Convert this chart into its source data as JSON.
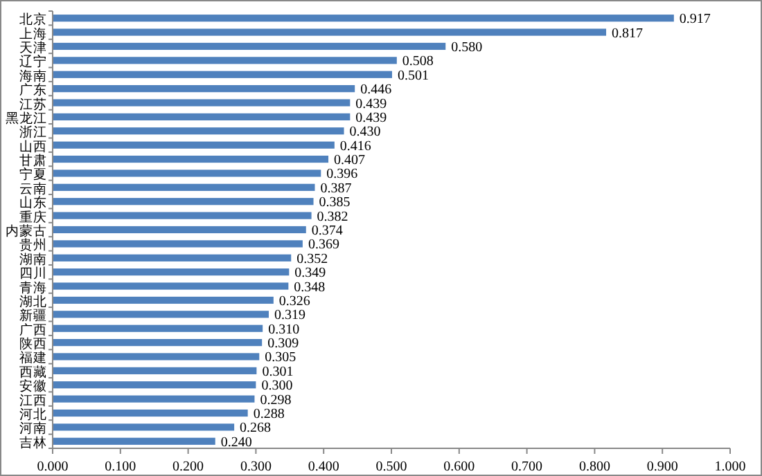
{
  "chart_data": {
    "type": "bar",
    "orientation": "horizontal",
    "categories": [
      "北京",
      "上海",
      "天津",
      "辽宁",
      "海南",
      "广东",
      "江苏",
      "黑龙江",
      "浙江",
      "山西",
      "甘肃",
      "宁夏",
      "云南",
      "山东",
      "重庆",
      "内蒙古",
      "贵州",
      "湖南",
      "四川",
      "青海",
      "湖北",
      "新疆",
      "广西",
      "陕西",
      "福建",
      "西藏",
      "安徽",
      "江西",
      "河北",
      "河南",
      "吉林"
    ],
    "values": [
      0.917,
      0.817,
      0.58,
      0.508,
      0.501,
      0.446,
      0.439,
      0.439,
      0.43,
      0.416,
      0.407,
      0.396,
      0.387,
      0.385,
      0.382,
      0.374,
      0.369,
      0.352,
      0.349,
      0.348,
      0.326,
      0.319,
      0.31,
      0.309,
      0.305,
      0.301,
      0.3,
      0.298,
      0.288,
      0.268,
      0.24
    ],
    "value_labels": [
      "0.917",
      "0.817",
      "0.580",
      "0.508",
      "0.501",
      "0.446",
      "0.439",
      "0.439",
      "0.430",
      "0.416",
      "0.407",
      "0.396",
      "0.387",
      "0.385",
      "0.382",
      "0.374",
      "0.369",
      "0.352",
      "0.349",
      "0.348",
      "0.326",
      "0.319",
      "0.310",
      "0.309",
      "0.305",
      "0.301",
      "0.300",
      "0.298",
      "0.288",
      "0.268",
      "0.240"
    ],
    "color": "#4f81bd",
    "xlim": [
      0,
      1
    ],
    "xticks": [
      {
        "value": 0,
        "label": "0.000"
      },
      {
        "value": 0.1,
        "label": "0.100"
      },
      {
        "value": 0.2,
        "label": "0.200"
      },
      {
        "value": 0.3,
        "label": "0.300"
      },
      {
        "value": 0.4,
        "label": "0.400"
      },
      {
        "value": 0.5,
        "label": "0.500"
      },
      {
        "value": 0.6,
        "label": "0.600"
      },
      {
        "value": 0.7,
        "label": "0.700"
      },
      {
        "value": 0.8,
        "label": "0.800"
      },
      {
        "value": 0.9,
        "label": "0.900"
      },
      {
        "value": 1,
        "label": "1.000"
      }
    ],
    "grid": false
  }
}
